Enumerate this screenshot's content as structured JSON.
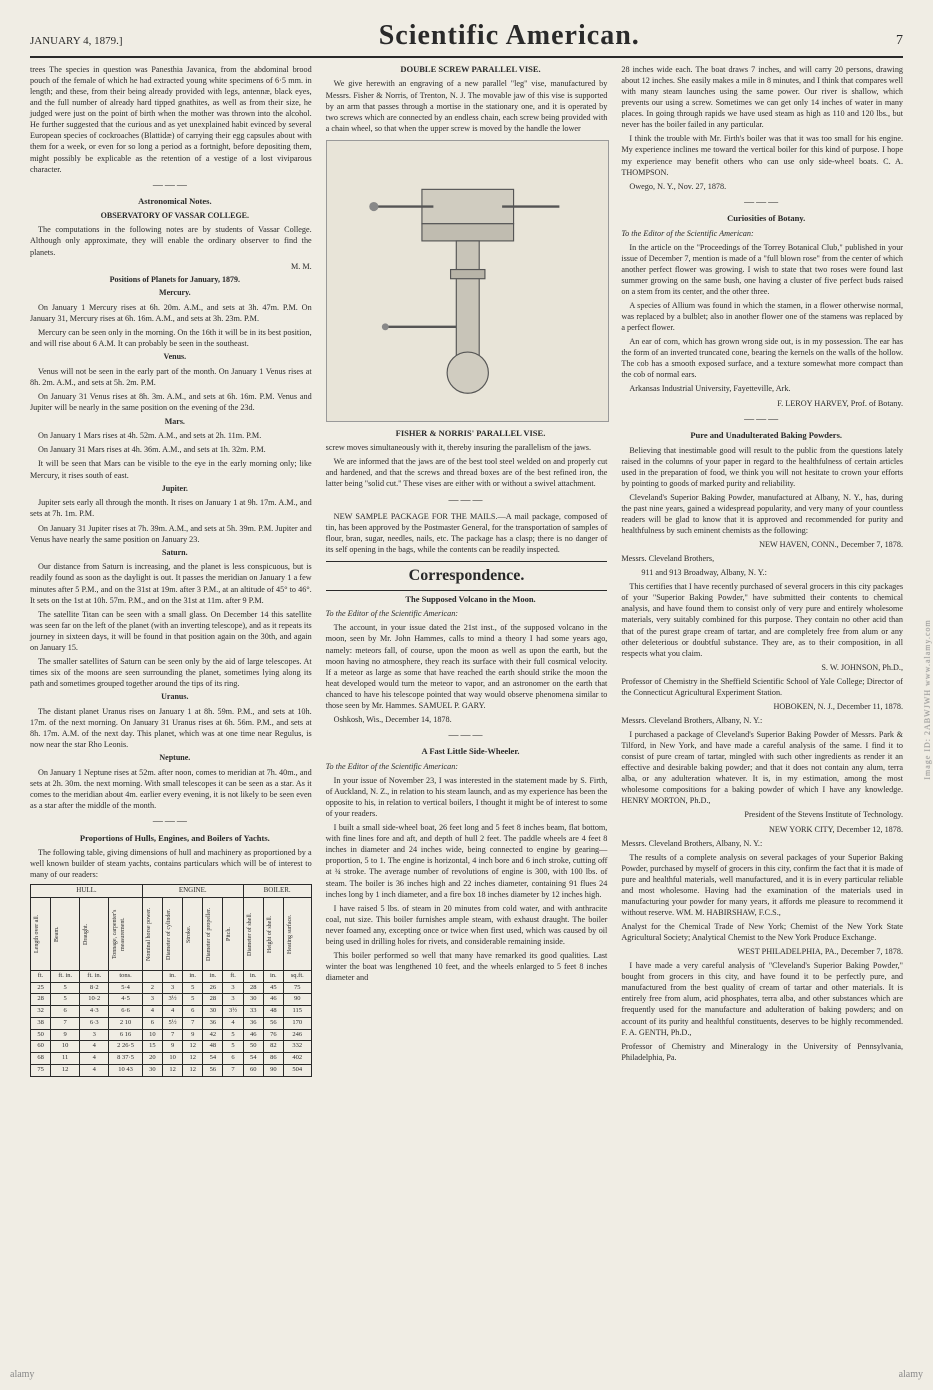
{
  "header": {
    "date": "JANUARY 4, 1879.]",
    "masthead": "Scientific American.",
    "pagenum": "7"
  },
  "col1": {
    "intro": "trees The species in question was Panesthia Javanica, from the abdominal brood pouch of the female of which he had extracted young white specimens of 6·5 mm. in length; and these, from their being already provided with legs, antennæ, black eyes, and the full number of already hard tipped gnathites, as well as from their size, he judged were just on the point of birth when the mother was thrown into the alcohol. He further suggested that the curious and as yet unexplained habit evinced by several European species of cockroaches (Blattidæ) of carrying their egg capsules about with them for a week, or even for so long a period as a fortnight, before depositing them, might possibly be explicable as the retention of a vestige of a lost viviparous character.",
    "astro_title": "Astronomical Notes.",
    "observatory": "OBSERVATORY OF VASSAR COLLEGE.",
    "astro_intro": "The computations in the following notes are by students of Vassar College. Although only approximate, they will enable the ordinary observer to find the planets.",
    "astro_sig": "M. M.",
    "positions_title": "Positions of Planets for January, 1879.",
    "mercury_head": "Mercury.",
    "mercury1": "On January 1 Mercury rises at 6h. 20m. A.M., and sets at 3h. 47m. P.M. On January 31, Mercury rises at 6h. 16m. A.M., and sets at 3h. 23m. P.M.",
    "mercury2": "Mercury can be seen only in the morning. On the 16th it will be in its best position, and will rise about 6 A.M. It can probably be seen in the southeast.",
    "venus_head": "Venus.",
    "venus1": "Venus will not be seen in the early part of the month. On January 1 Venus rises at 8h. 2m. A.M., and sets at 5h. 2m. P.M.",
    "venus2": "On January 31 Venus rises at 8h. 3m. A.M., and sets at 6h. 16m. P.M. Venus and Jupiter will be nearly in the same position on the evening of the 23d.",
    "mars_head": "Mars.",
    "mars1": "On January 1 Mars rises at 4h. 52m. A.M., and sets at 2h. 11m. P.M.",
    "mars2": "On January 31 Mars rises at 4h. 36m. A.M., and sets at 1h. 32m. P.M.",
    "mars3": "It will be seen that Mars can be visible to the eye in the early morning only; like Mercury, it rises south of east.",
    "jupiter_head": "Jupiter.",
    "jupiter1": "Jupiter sets early all through the month. It rises on January 1 at 9h. 17m. A.M., and sets at 7h. 1m. P.M.",
    "jupiter2": "On January 31 Jupiter rises at 7h. 39m. A.M., and sets at 5h. 39m. P.M. Jupiter and Venus have nearly the same position on January 23.",
    "saturn_head": "Saturn.",
    "saturn1": "Our distance from Saturn is increasing, and the planet is less conspicuous, but is readily found as soon as the daylight is out. It passes the meridian on January 1 a few minutes after 5 P.M., and on the 31st at 19m. after 3 P.M., at an altitude of 45° to 46°. It sets on the 1st at 10h. 57m. P.M., and on the 31st at 11m. after 9 P.M.",
    "saturn2": "The satellite Titan can be seen with a small glass. On December 14 this satellite was seen far on the left of the planet (with an inverting telescope), and as it repeats its journey in sixteen days, it will be found in that position again on the 30th, and again on January 15.",
    "saturn3": "The smaller satellites of Saturn can be seen only by the aid of large telescopes. At times six of the moons are seen surrounding the planet, sometimes lying along its path and sometimes grouped together around the tips of its ring.",
    "uranus_head": "Uranus.",
    "uranus1": "The distant planet Uranus rises on January 1 at 8h. 59m. P.M., and sets at 10h. 17m. of the next morning. On January 31 Uranus rises at 6h. 56m. P.M., and sets at 8h. 17m. A.M. of the next day. This planet, which was at one time near Regulus, is now near the star Rho Leonis.",
    "neptune_head": "Neptune.",
    "neptune1": "On January 1 Neptune rises at 52m. after noon, comes to meridian at 7h. 40m., and sets at 2h. 30m. the next morning. With small telescopes it can be seen as a star. As it comes to the meridian about 4m. earlier every evening, it is not likely to be seen even as a star after the middle of the month.",
    "yacht_title": "Proportions of Hulls, Engines, and Boilers of Yachts.",
    "yacht_intro": "The following table, giving dimensions of hull and machinery as proportioned by a well known builder of steam yachts, contains particulars which will be of interest to many of our readers:"
  },
  "table": {
    "groups": [
      "HULL.",
      "ENGINE.",
      "BOILER."
    ],
    "headers": [
      "Length over all.",
      "Beam.",
      "Draught.",
      "Tonnage, carpenter's measurement.",
      "Nominal horse power.",
      "Diameter of cylinder.",
      "Stroke.",
      "Diameter of propeller.",
      "Pitch.",
      "Diameter of shell.",
      "Height of shell.",
      "Heating surface."
    ],
    "units": [
      "ft.",
      "ft. in.",
      "ft. in.",
      "tons.",
      "",
      "in.",
      "in.",
      "in.",
      "ft.",
      "in.",
      "in.",
      "sq.ft."
    ],
    "rows": [
      [
        "25",
        "5",
        "8·2",
        "5·4",
        "2",
        "3",
        "5",
        "26",
        "3",
        "28",
        "45",
        "75"
      ],
      [
        "28",
        "5",
        "10·2",
        "4·5",
        "3",
        "3½",
        "5",
        "28",
        "3",
        "30",
        "46",
        "90"
      ],
      [
        "32",
        "6",
        "4·3",
        "6·6",
        "4",
        "4",
        "6",
        "30",
        "3½",
        "33",
        "48",
        "115"
      ],
      [
        "38",
        "7",
        "6·3",
        "2 10",
        "6",
        "5½",
        "7",
        "36",
        "4",
        "36",
        "56",
        "170"
      ],
      [
        "50",
        "9",
        "3",
        "6 16",
        "10",
        "7",
        "9",
        "42",
        "5",
        "46",
        "76",
        "246"
      ],
      [
        "60",
        "10",
        "4",
        "2 26·5",
        "15",
        "9",
        "12",
        "48",
        "5",
        "50",
        "82",
        "332"
      ],
      [
        "68",
        "11",
        "4",
        "8 37·5",
        "20",
        "10",
        "12",
        "54",
        "6",
        "54",
        "86",
        "402"
      ],
      [
        "75",
        "12",
        "4",
        "10 43",
        "30",
        "12",
        "12",
        "56",
        "7",
        "60",
        "90",
        "504"
      ]
    ]
  },
  "col2": {
    "vise_title": "DOUBLE SCREW PARALLEL VISE.",
    "vise1": "We give herewith an engraving of a new parallel \"leg\" vise, manufactured by Messrs. Fisher & Norris, of Trenton, N. J. The movable jaw of this vise is supported by an arm that passes through a mortise in the stationary one, and it is operated by two screws which are connected by an endless chain, each screw being provided with a chain wheel, so that when the upper screw is moved by the handle the lower",
    "caption": "FISHER & NORRIS' PARALLEL VISE.",
    "vise2": "screw moves simultaneously with it, thereby insuring the parallelism of the jaws.",
    "vise3": "We are informed that the jaws are of the best tool steel welded on and properly cut and hardened, and that the screws and thread boxes are of the best refined iron, the latter being \"solid cut.\" These vises are either with or without a swivel attachment.",
    "mails": "NEW SAMPLE PACKAGE FOR THE MAILS.—A mail package, composed of tin, has been approved by the Postmaster General, for the transportation of samples of flour, bran, sugar, needles, nails, etc. The package has a clasp; there is no danger of its self opening in the bags, while the contents can be readily inspected.",
    "correspondence": "Correspondence.",
    "volcano_title": "The Supposed Volcano in the Moon.",
    "editor1": "To the Editor of the Scientific American:",
    "volcano1": "The account, in your issue dated the 21st inst., of the supposed volcano in the moon, seen by Mr. John Hammes, calls to mind a theory I had some years ago, namely: meteors fall, of course, upon the moon as well as upon the earth, but the moon having no atmosphere, they reach its surface with their full cosmical velocity. If a meteor as large as some that have reached the earth should strike the moon the heat developed would turn the meteor to vapor, and an astronomer on the earth that chanced to have his telescope pointed that way would observe phenomena similar to those seen by Mr. Hammes.     SAMUEL P. GARY.",
    "volcano_sig": "Oshkosh, Wis., December 14, 1878.",
    "wheeler_title": "A Fast Little Side-Wheeler.",
    "editor2": "To the Editor of the Scientific American:",
    "wheeler1": "In your issue of November 23, I was interested in the statement made by S. Firth, of Auckland, N. Z., in relation to his steam launch, and as my experience has been the opposite to his, in relation to vertical boilers, I thought it might be of interest to some of your readers.",
    "wheeler2": "I built a small side-wheel boat, 26 feet long and 5 feet 8 inches beam, flat bottom, with fine lines fore and aft, and depth of hull 2 feet. The paddle wheels are 4 feet 8 inches in diameter and 24 inches wide, being connected to engine by gearing—proportion, 5 to 1. The engine is horizontal, 4 inch bore and 6 inch stroke, cutting off at ¾ stroke. The average number of revolutions of engine is 300, with 100 lbs. of steam. The boiler is 36 inches high and 22 inches diameter, containing 91 flues 24 inches long by 1 inch diameter, and a fire box 18 inches diameter by 12 inches high.",
    "wheeler3": "I have raised 5 lbs. of steam in 20 minutes from cold water, and with anthracite coal, nut size. This boiler furnishes ample steam, with exhaust draught. The boiler never foamed any, excepting once or twice when first used, which was caused by oil being used in drilling holes for rivets, and considerable remaining inside.",
    "wheeler4": "This boiler performed so well that many have remarked its good qualities. Last winter the boat was lengthened 10 feet, and the wheels enlarged to 5 feet 8 inches diameter and"
  },
  "col3": {
    "wheeler5": "28 inches wide each. The boat draws 7 inches, and will carry 20 persons, drawing about 12 inches. She easily makes a mile in 8 minutes, and I think that compares well with many steam launches using the same power. Our river is shallow, which prevents our using a screw. Sometimes we can get only 14 inches of water in many places. In going through rapids we have used steam as high as 110 and 120 lbs., but never has the boiler failed in any particular.",
    "wheeler6": "I think the trouble with Mr. Firth's boiler was that it was too small for his engine. My experience inclines me toward the vertical boiler for this kind of purpose. I hope my experience may benefit others who can use only side-wheel boats.                                          C. A. THOMPSON.",
    "wheeler_sig": "Owego, N. Y., Nov. 27, 1878.",
    "botany_title": "Curiosities of Botany.",
    "editor3": "To the Editor of the Scientific American:",
    "botany1": "In the article on the \"Proceedings of the Torrey Botanical Club,\" published in your issue of December 7, mention is made of a \"full blown rose\" from the center of which another perfect flower was growing. I wish to state that two roses were found last summer growing on the same bush, one having a cluster of five perfect buds raised on a stem from its center, and the other three.",
    "botany2": "A species of Allium was found in which the stamen, in a flower otherwise normal, was replaced by a bulblet; also in another flower one of the stamens was replaced by a perfect flower.",
    "botany3": "An ear of corn, which has grown wrong side out, is in my possession. The ear has the form of an inverted truncated cone, bearing the kernels on the walls of the hollow. The cob has a smooth exposed surface, and a texture somewhat more compact than the cob of normal ears.",
    "botany_loc": "Arkansas Industrial University, Fayetteville, Ark.",
    "botany_sig": "F. LEROY HARVEY, Prof. of Botany.",
    "baking_title": "Pure and Unadulterated Baking Powders.",
    "baking1": "Believing that inestimable good will result to the public from the questions lately raised in the columns of your paper in regard to the healthfulness of certain articles used in the preparation of food, we think you will not hesitate to crown your efforts by pointing to goods of marked purity and reliability.",
    "baking2": "Cleveland's Superior Baking Powder, manufactured at Albany, N. Y., has, during the past nine years, gained a widespread popularity, and very many of your countless readers will be glad to know that it is approved and recommended for purity and healthfulness by such eminent chemists as the following:",
    "cert1_loc": "NEW HAVEN, CONN., December 7, 1878.",
    "cert1_to": "Messrs. Cleveland Brothers,",
    "cert1_addr": "911 and 913 Broadway, Albany, N. Y.:",
    "cert1_body": "This certifies that I have recently purchased of several grocers in this city packages of your \"Superior Baking Powder,\" have submitted their contents to chemical analysis, and have found them to consist only of very pure and entirely wholesome materials, very suitably combined for this purpose. They contain no other acid than that of the purest grape cream of tartar, and are completely free from alum or any other deleterious or doubtful substance. They are, as to their composition, in all respects what you claim.",
    "cert1_sig": "S. W. JOHNSON, Ph.D.,",
    "cert1_title": "Professor of Chemistry in the Sheffield Scientific School of Yale College; Director of the Connecticut Agricultural Experiment Station.",
    "cert2_loc": "HOBOKEN, N. J., December 11, 1878.",
    "cert2_to": "Messrs. Cleveland Brothers, Albany, N. Y.:",
    "cert2_body": "I purchased a package of Cleveland's Superior Baking Powder of Messrs. Park & Tilford, in New York, and have made a careful analysis of the same. I find it to consist of pure cream of tartar, mingled with such other ingredients as render it an effective and desirable baking powder; and that it does not contain any alum, terra alba, or any adulteration whatever. It is, in my estimation, among the most wholesome compositions for a baking powder of which I have any knowledge.                    HENRY MORTON, Ph.D.,",
    "cert2_title": "President of the Stevens Institute of Technology.",
    "cert3_loc": "NEW YORK CITY, December 12, 1878.",
    "cert3_to": "Messrs. Cleveland Brothers, Albany, N. Y.:",
    "cert3_body": "The results of a complete analysis on several packages of your Superior Baking Powder, purchased by myself of grocers in this city, confirm the fact that it is made of pure and healthful materials, well manufactured, and it is in every particular reliable and most wholesome. Having had the examination of the materials used in manufacturing your powder for many years, it affords me pleasure to recommend it without reserve.    WM. M. HABIRSHAW, F.C.S.,",
    "cert3_title": "Analyst for the Chemical Trade of New York; Chemist of the New York State Agricultural Society; Analytical Chemist to the New York Produce Exchange.",
    "cert4_loc": "WEST PHILADELPHIA, PA., December 7, 1878.",
    "cert4_body": "I have made a very careful analysis of \"Cleveland's Superior Baking Powder,\" bought from grocers in this city, and have found it to be perfectly pure, and manufactured from the best quality of cream of tartar and other materials. It is entirely free from alum, acid phosphates, terra alba, and other substances which are frequently used for the manufacture and adulteration of baking powders; and on account of its purity and healthful constituents, deserves to be highly recommended.                F. A. GENTH, Ph.D.,",
    "cert4_title": "Professor of Chemistry and Mineralogy in the University of Pennsylvania, Philadelphia, Pa."
  },
  "watermarks": {
    "left": "alamy",
    "right": "alamy",
    "side": "Image ID: 2ABWJWH  www.alamy.com"
  }
}
